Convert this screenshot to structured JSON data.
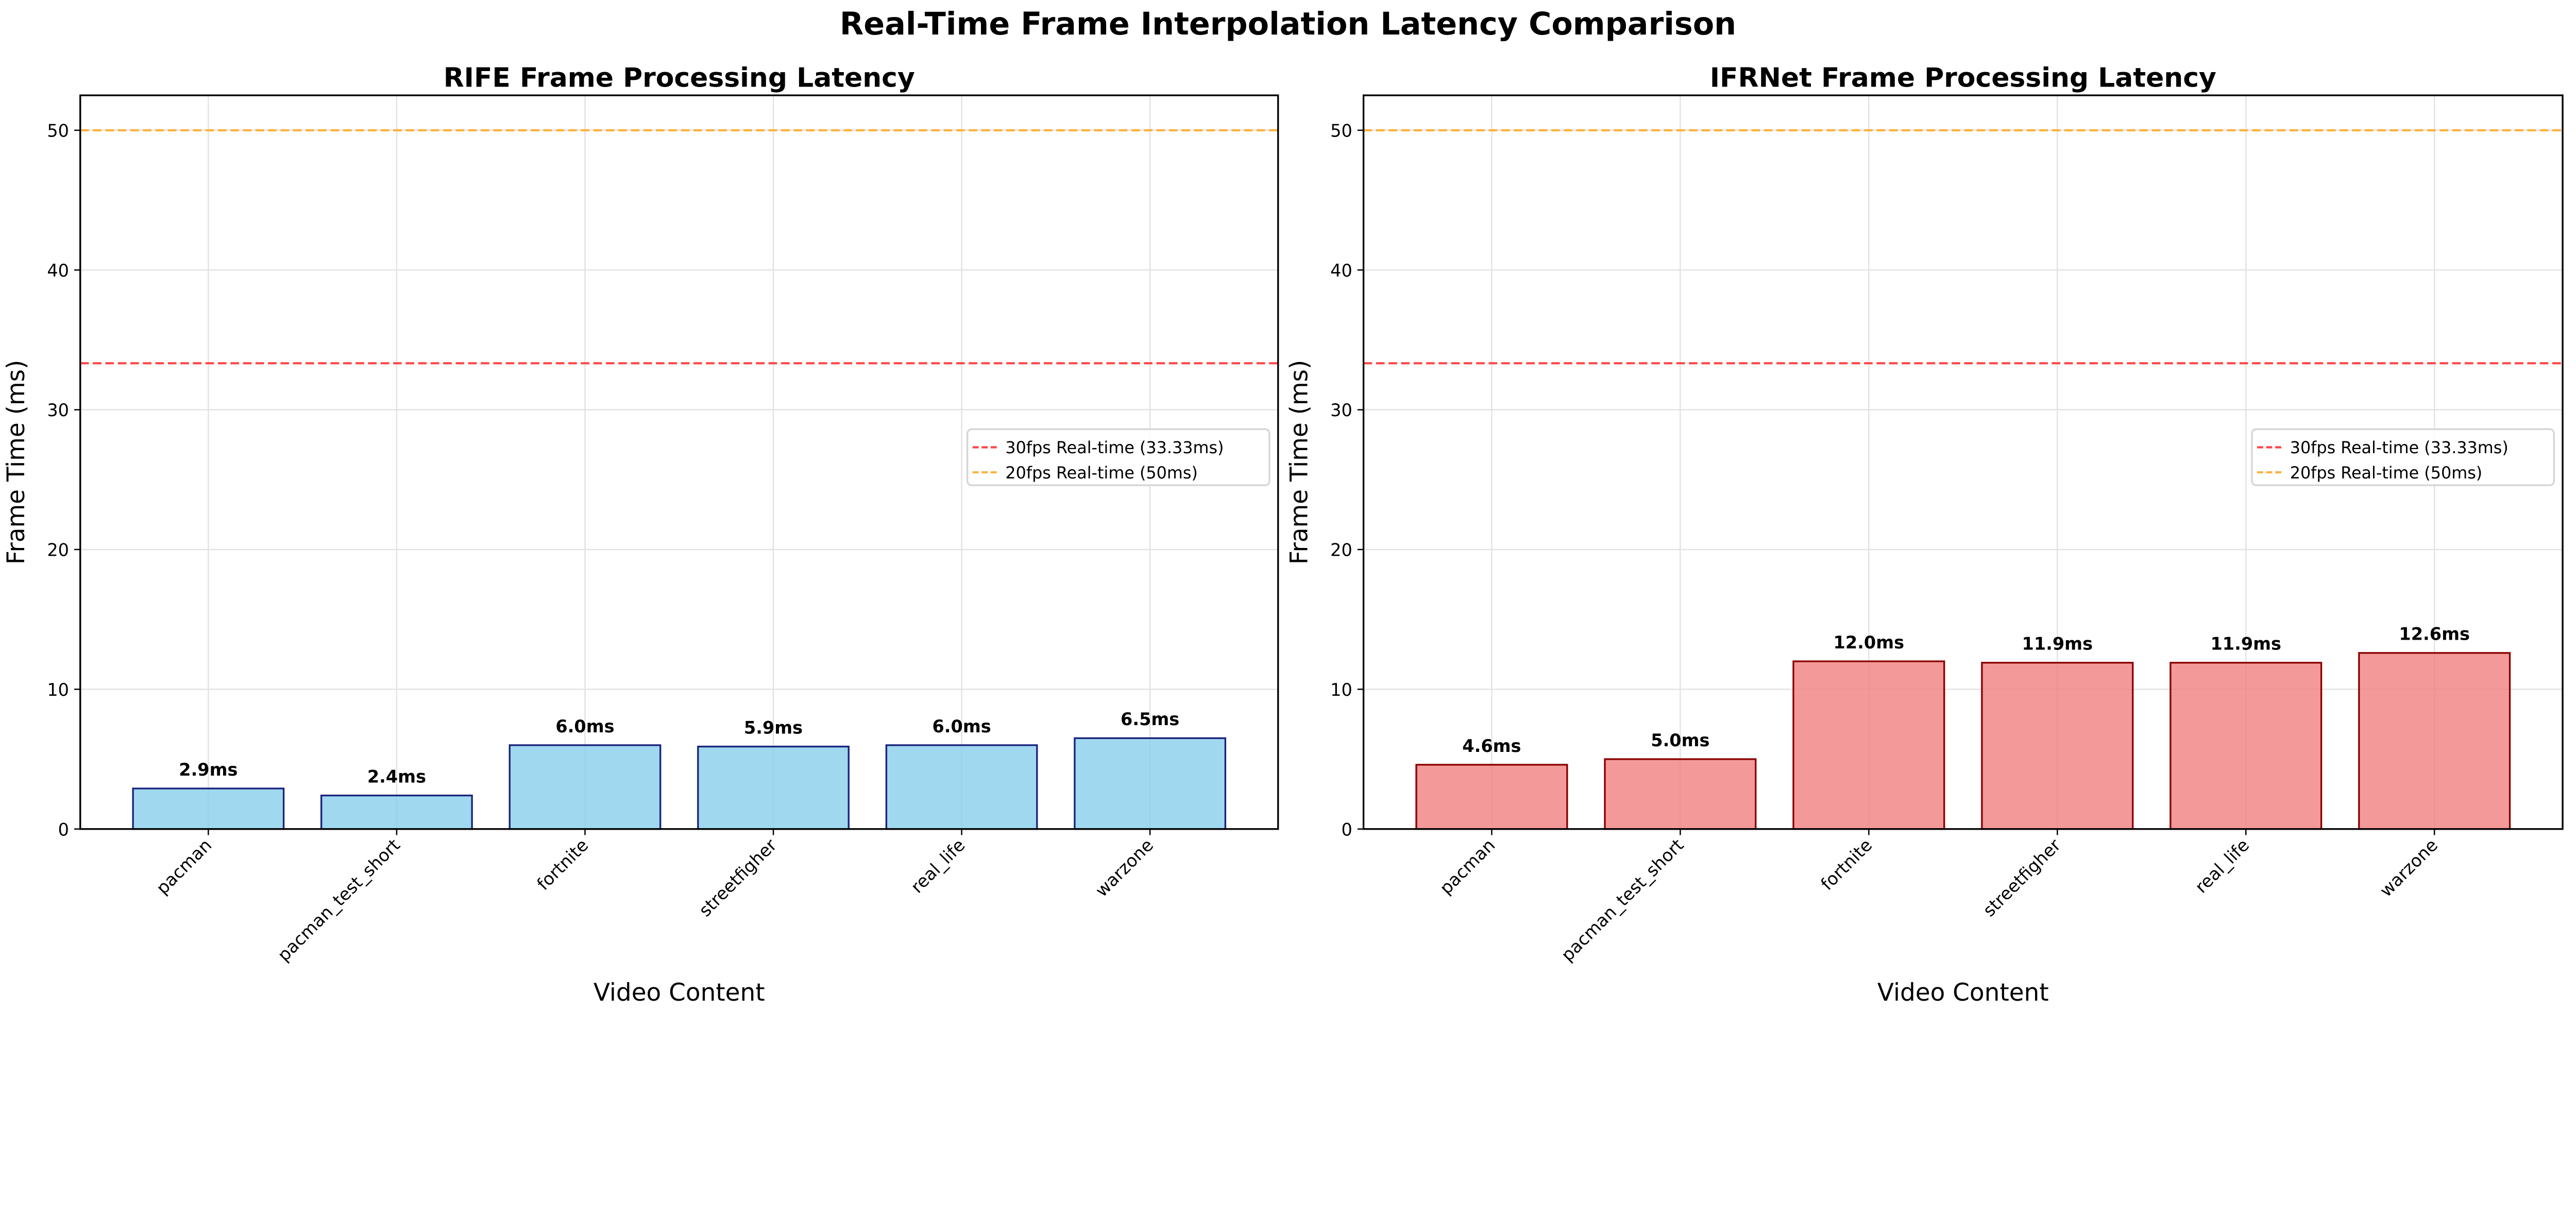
{
  "chart_data": [
    {
      "type": "bar",
      "title": "RIFE Frame Processing Latency",
      "xlabel": "Video Content",
      "ylabel": "Frame Time (ms)",
      "categories": [
        "pacman",
        "pacman_test_short",
        "fortnite",
        "streetfigher",
        "real_life",
        "warzone"
      ],
      "values": [
        2.9,
        2.4,
        6.0,
        5.9,
        6.0,
        6.5
      ],
      "value_labels": [
        "2.9ms",
        "2.4ms",
        "6.0ms",
        "5.9ms",
        "6.0ms",
        "6.5ms"
      ],
      "bar_color": "#87CEEB",
      "edge_color": "#1a237e",
      "ylim": [
        0,
        52.5
      ],
      "yticks": [
        0,
        10,
        20,
        30,
        40,
        50
      ],
      "ytick_labels": [
        "0",
        "10",
        "20",
        "30",
        "40",
        "50"
      ],
      "grid": true,
      "hlines": [
        {
          "value": 33.33,
          "label": "30fps Real-time (33.33ms)",
          "color": "#ff4444"
        },
        {
          "value": 50,
          "label": "20fps Real-time (50ms)",
          "color": "#ffb03b"
        }
      ],
      "legend_position": "center-right"
    },
    {
      "type": "bar",
      "title": "IFRNet Frame Processing Latency",
      "xlabel": "Video Content",
      "ylabel": "Frame Time (ms)",
      "categories": [
        "pacman",
        "pacman_test_short",
        "fortnite",
        "streetfigher",
        "real_life",
        "warzone"
      ],
      "values": [
        4.6,
        5.0,
        12.0,
        11.9,
        11.9,
        12.6
      ],
      "value_labels": [
        "4.6ms",
        "5.0ms",
        "12.0ms",
        "11.9ms",
        "11.9ms",
        "12.6ms"
      ],
      "bar_color": "#F08080",
      "edge_color": "#8b0000",
      "ylim": [
        0,
        52.5
      ],
      "yticks": [
        0,
        10,
        20,
        30,
        40,
        50
      ],
      "ytick_labels": [
        "0",
        "10",
        "20",
        "30",
        "40",
        "50"
      ],
      "grid": true,
      "hlines": [
        {
          "value": 33.33,
          "label": "30fps Real-time (33.33ms)",
          "color": "#ff4444"
        },
        {
          "value": 50,
          "label": "20fps Real-time (50ms)",
          "color": "#ffb03b"
        }
      ],
      "legend_position": "center-right"
    }
  ],
  "suptitle": "Real-Time Frame Interpolation Latency Comparison"
}
